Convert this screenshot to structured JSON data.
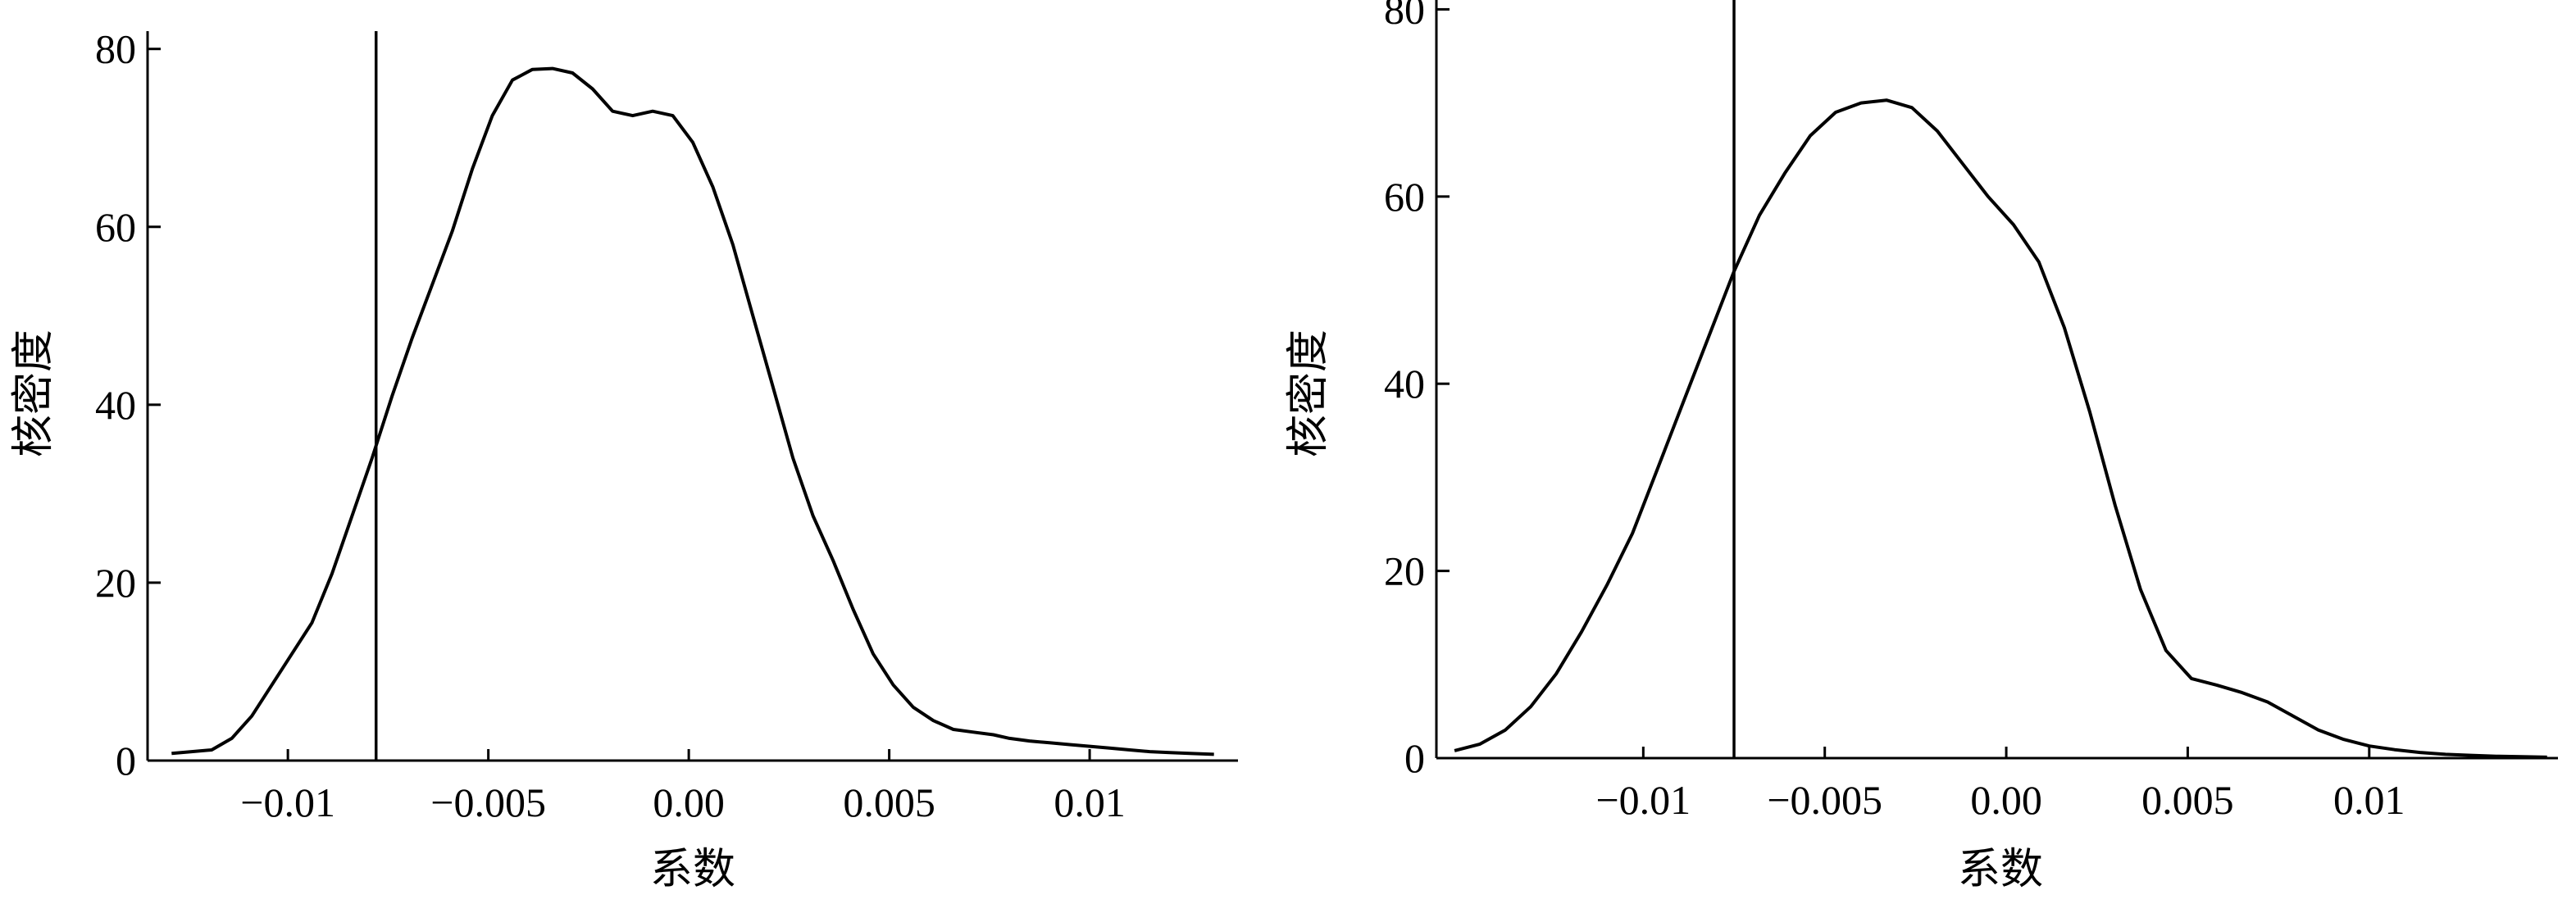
{
  "chart_data": [
    {
      "type": "line",
      "xlabel": "系数",
      "ylabel": "核密度",
      "xlim": [
        -0.0135,
        0.0137
      ],
      "ylim": [
        0,
        82
      ],
      "x_ticks": [
        {
          "value": -0.01,
          "label": "−0.01"
        },
        {
          "value": -0.005,
          "label": "−0.005"
        },
        {
          "value": 0,
          "label": "0.00"
        },
        {
          "value": 0.005,
          "label": "0.005"
        },
        {
          "value": 0.01,
          "label": "0.01"
        }
      ],
      "y_ticks": [
        {
          "value": 0,
          "label": "0"
        },
        {
          "value": 20,
          "label": "20"
        },
        {
          "value": 40,
          "label": "40"
        },
        {
          "value": 60,
          "label": "60"
        },
        {
          "value": 80,
          "label": "80"
        }
      ],
      "reference_line_x": -0.0078,
      "grid": false,
      "series": [
        {
          "color": "#000000",
          "points": [
            [
              -0.0129,
              0.8
            ],
            [
              -0.0124,
              1.0
            ],
            [
              -0.0119,
              1.2
            ],
            [
              -0.0114,
              2.5
            ],
            [
              -0.0109,
              5.0
            ],
            [
              -0.0104,
              8.5
            ],
            [
              -0.0099,
              12.0
            ],
            [
              -0.0094,
              15.5
            ],
            [
              -0.0089,
              21.0
            ],
            [
              -0.0084,
              27.5
            ],
            [
              -0.0079,
              34.0
            ],
            [
              -0.0074,
              41.0
            ],
            [
              -0.0069,
              47.5
            ],
            [
              -0.0064,
              53.5
            ],
            [
              -0.0059,
              59.5
            ],
            [
              -0.0054,
              66.5
            ],
            [
              -0.0049,
              72.5
            ],
            [
              -0.0044,
              76.5
            ],
            [
              -0.0039,
              77.7
            ],
            [
              -0.0034,
              77.8
            ],
            [
              -0.0029,
              77.3
            ],
            [
              -0.0024,
              75.5
            ],
            [
              -0.0019,
              73.0
            ],
            [
              -0.0014,
              72.5
            ],
            [
              -0.0009,
              73.0
            ],
            [
              -0.0004,
              72.5
            ],
            [
              0.0001,
              69.5
            ],
            [
              0.0006,
              64.5
            ],
            [
              0.0011,
              58.0
            ],
            [
              0.0016,
              50.0
            ],
            [
              0.0021,
              42.0
            ],
            [
              0.0026,
              34.0
            ],
            [
              0.0031,
              27.5
            ],
            [
              0.0036,
              22.5
            ],
            [
              0.0041,
              17.0
            ],
            [
              0.0046,
              12.0
            ],
            [
              0.0051,
              8.5
            ],
            [
              0.0056,
              6.0
            ],
            [
              0.0061,
              4.5
            ],
            [
              0.0066,
              3.5
            ],
            [
              0.0071,
              3.2
            ],
            [
              0.0076,
              2.9
            ],
            [
              0.008,
              2.5
            ],
            [
              0.0085,
              2.2
            ],
            [
              0.009,
              2.0
            ],
            [
              0.0095,
              1.8
            ],
            [
              0.01,
              1.6
            ],
            [
              0.0105,
              1.4
            ],
            [
              0.011,
              1.2
            ],
            [
              0.0115,
              1.0
            ],
            [
              0.012,
              0.9
            ],
            [
              0.0125,
              0.8
            ],
            [
              0.0131,
              0.7
            ]
          ]
        }
      ]
    },
    {
      "type": "line",
      "xlabel": "系数",
      "ylabel": "核密度",
      "xlim": [
        -0.0157,
        0.0152
      ],
      "ylim": [
        0,
        81
      ],
      "x_ticks": [
        {
          "value": -0.01,
          "label": "−0.01"
        },
        {
          "value": -0.005,
          "label": "−0.005"
        },
        {
          "value": 0,
          "label": "0.00"
        },
        {
          "value": 0.005,
          "label": "0.005"
        },
        {
          "value": 0.01,
          "label": "0.01"
        }
      ],
      "y_ticks": [
        {
          "value": 0,
          "label": "0"
        },
        {
          "value": 20,
          "label": "20"
        },
        {
          "value": 40,
          "label": "40"
        },
        {
          "value": 60,
          "label": "60"
        },
        {
          "value": 80,
          "label": "80"
        }
      ],
      "reference_line_x": -0.0075,
      "grid": false,
      "series": [
        {
          "color": "#000000",
          "points": [
            [
              -0.0152,
              0.8
            ],
            [
              -0.0145,
              1.5
            ],
            [
              -0.0138,
              3.0
            ],
            [
              -0.0131,
              5.5
            ],
            [
              -0.0124,
              9.0
            ],
            [
              -0.0117,
              13.5
            ],
            [
              -0.011,
              18.5
            ],
            [
              -0.0103,
              24.0
            ],
            [
              -0.0096,
              31.0
            ],
            [
              -0.0089,
              38.0
            ],
            [
              -0.0082,
              45.0
            ],
            [
              -0.0075,
              52.0
            ],
            [
              -0.0068,
              58.0
            ],
            [
              -0.0061,
              62.5
            ],
            [
              -0.0054,
              66.5
            ],
            [
              -0.0047,
              69.0
            ],
            [
              -0.004,
              70.0
            ],
            [
              -0.0033,
              70.3
            ],
            [
              -0.0026,
              69.5
            ],
            [
              -0.0019,
              67.0
            ],
            [
              -0.0012,
              63.5
            ],
            [
              -0.0005,
              60.0
            ],
            [
              0.0002,
              57.0
            ],
            [
              0.0009,
              53.0
            ],
            [
              0.0016,
              46.0
            ],
            [
              0.0023,
              37.0
            ],
            [
              0.003,
              27.0
            ],
            [
              0.0037,
              18.0
            ],
            [
              0.0044,
              11.5
            ],
            [
              0.0051,
              8.5
            ],
            [
              0.0058,
              7.8
            ],
            [
              0.0065,
              7.0
            ],
            [
              0.0072,
              6.0
            ],
            [
              0.0079,
              4.5
            ],
            [
              0.0086,
              3.0
            ],
            [
              0.0093,
              2.0
            ],
            [
              0.01,
              1.3
            ],
            [
              0.0107,
              0.9
            ],
            [
              0.0114,
              0.6
            ],
            [
              0.0121,
              0.4
            ],
            [
              0.0128,
              0.3
            ],
            [
              0.0135,
              0.2
            ],
            [
              0.0142,
              0.15
            ],
            [
              0.0149,
              0.1
            ]
          ]
        }
      ]
    }
  ]
}
